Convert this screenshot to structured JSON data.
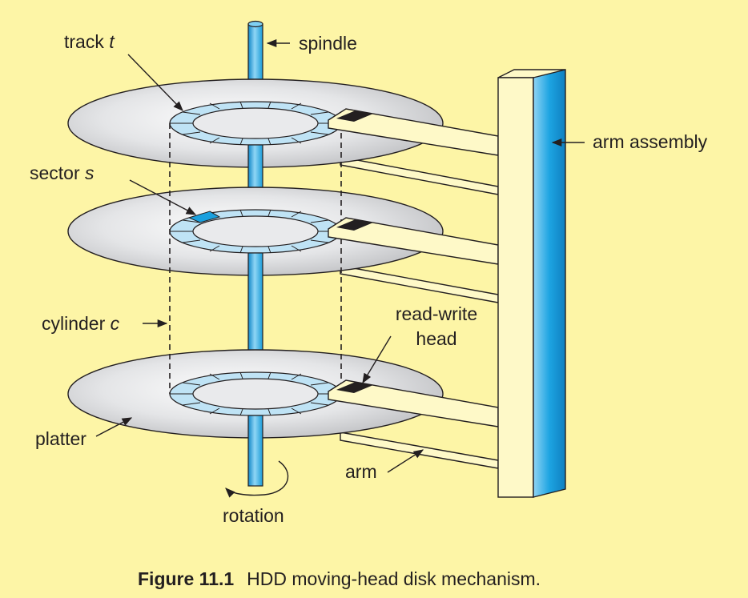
{
  "figure": {
    "number": "Figure 11.1",
    "caption": "HDD moving-head disk mechanism."
  },
  "labels": {
    "track": "track",
    "track_var": "t",
    "spindle": "spindle",
    "arm_assembly": "arm assembly",
    "sector": "sector",
    "sector_var": "s",
    "cylinder": "cylinder",
    "cylinder_var": "c",
    "read_write_head_line1": "read-write",
    "read_write_head_line2": "head",
    "platter": "platter",
    "arm": "arm",
    "rotation": "rotation"
  },
  "colors": {
    "background": "#fdf5a6",
    "spindle_blue": "#2aa8e0",
    "platter_gray": "#d9dadc",
    "track_ring": "#bfe3f5",
    "highlight_sector": "#1aa0de",
    "arm_fill": "#fef9c8",
    "head_fill": "#231f20"
  }
}
